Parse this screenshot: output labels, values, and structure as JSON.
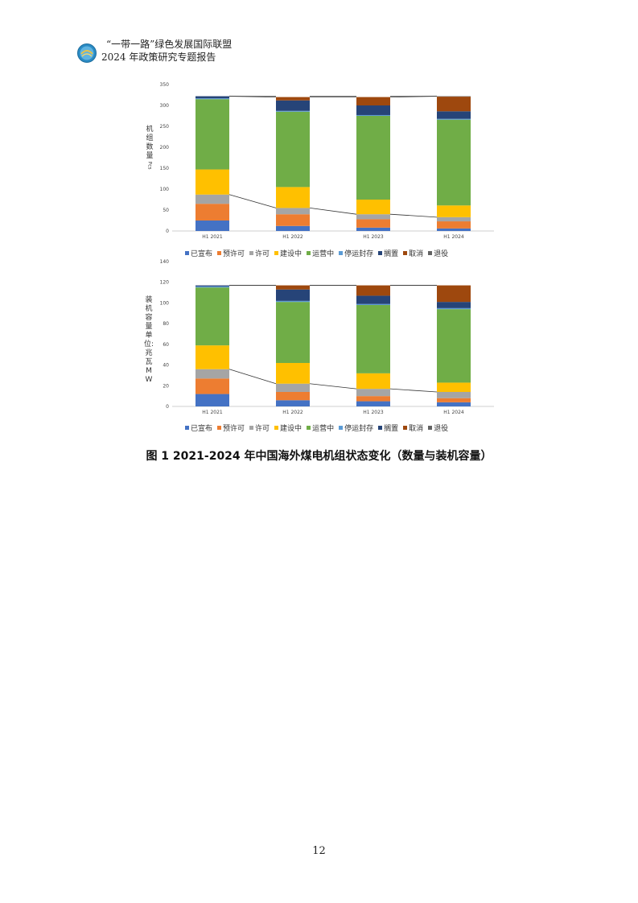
{
  "header": {
    "line1": "“一带一路”绿色发展国际联盟",
    "line2": "2024 年政策研究专题报告"
  },
  "colors": {
    "已宣布": "#4472c4",
    "预许可": "#ed7d31",
    "许可": "#a5a5a5",
    "建设中": "#ffc000",
    "运营中": "#70ad47",
    "停运封存": "#5b9bd5",
    "搁置": "#264478",
    "取消": "#9e480e",
    "退役": "#636363"
  },
  "chart_data": [
    {
      "type": "bar",
      "stacked": true,
      "ylabel": "机组数量",
      "ylabel_sub": "Pcs",
      "ylim": [
        0,
        350
      ],
      "yticks": [
        "0",
        "50",
        "100",
        "150",
        "200",
        "250",
        "300",
        "350"
      ],
      "categories": [
        "H1 2021",
        "H1 2022",
        "H1 2023",
        "H1 2024"
      ],
      "series": [
        {
          "name": "已宣布",
          "values": [
            25,
            12,
            8,
            6
          ]
        },
        {
          "name": "预许可",
          "values": [
            40,
            28,
            20,
            17
          ]
        },
        {
          "name": "许可",
          "values": [
            22,
            15,
            12,
            10
          ]
        },
        {
          "name": "建设中",
          "values": [
            60,
            50,
            35,
            28
          ]
        },
        {
          "name": "运营中",
          "values": [
            168,
            180,
            200,
            205
          ]
        },
        {
          "name": "停运封存",
          "values": [
            2,
            2,
            2,
            2
          ]
        },
        {
          "name": "搁置",
          "values": [
            5,
            25,
            23,
            18
          ]
        },
        {
          "name": "取消",
          "values": [
            0,
            8,
            20,
            35
          ]
        },
        {
          "name": "退役",
          "values": [
            0,
            0,
            0,
            1
          ]
        }
      ]
    },
    {
      "type": "bar",
      "stacked": true,
      "ylabel": "装机容量单位:兆瓦MW",
      "ylim": [
        0,
        140
      ],
      "yticks": [
        "0",
        "20",
        "40",
        "60",
        "80",
        "100",
        "120",
        "140"
      ],
      "categories": [
        "H1 2021",
        "H1 2022",
        "H1 2023",
        "H1 2024"
      ],
      "series": [
        {
          "name": "已宣布",
          "values": [
            12,
            6,
            5,
            4
          ]
        },
        {
          "name": "预许可",
          "values": [
            15,
            8,
            5,
            4
          ]
        },
        {
          "name": "许可",
          "values": [
            9,
            8,
            7,
            6
          ]
        },
        {
          "name": "建设中",
          "values": [
            23,
            20,
            15,
            9
          ]
        },
        {
          "name": "运营中",
          "values": [
            56,
            59,
            66,
            71
          ]
        },
        {
          "name": "停运封存",
          "values": [
            1,
            1,
            1,
            1
          ]
        },
        {
          "name": "搁置",
          "values": [
            1,
            11,
            8,
            6
          ]
        },
        {
          "name": "取消",
          "values": [
            0,
            4,
            10,
            16
          ]
        },
        {
          "name": "退役",
          "values": [
            0,
            0,
            0,
            0
          ]
        }
      ]
    }
  ],
  "legend": [
    "已宣布",
    "预许可",
    "许可",
    "建设中",
    "运营中",
    "停运封存",
    "搁置",
    "取消",
    "退役"
  ],
  "caption": "图 1 2021-2024 年中国海外煤电机组状态变化（数量与装机容量）",
  "page_number": "12"
}
